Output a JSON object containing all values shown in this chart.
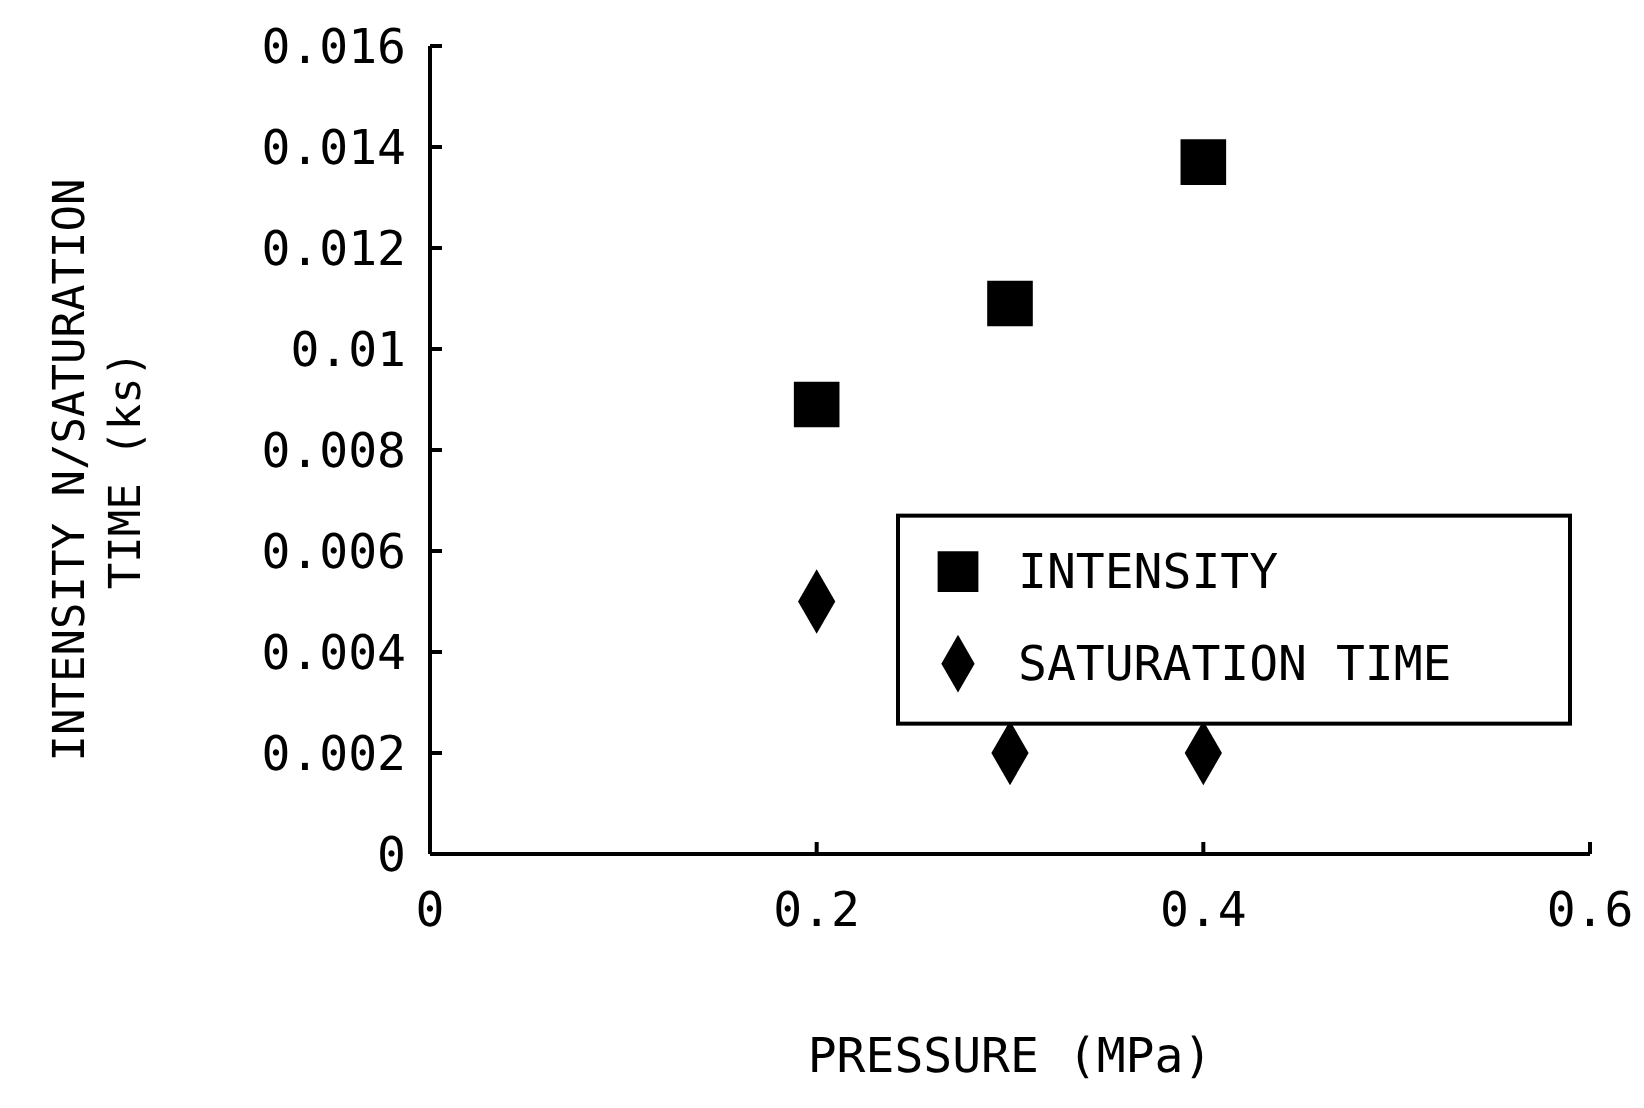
{
  "chart_data": {
    "type": "scatter",
    "xlabel": "PRESSURE (MPa)",
    "ylabel": "INTENSITY N/SATURATION TIME (ks)",
    "xlim": [
      0,
      0.6
    ],
    "xticks": [
      0,
      0.2,
      0.4,
      0.6
    ],
    "ylim": [
      0,
      0.016
    ],
    "yticks": [
      0,
      0.002,
      0.004,
      0.006,
      0.008,
      0.01,
      0.012,
      0.014,
      0.016
    ],
    "grid": false,
    "legend": "right",
    "series": [
      {
        "name": "INTENSITY",
        "color": "#000000",
        "marker": "square",
        "x": [
          0.2,
          0.3,
          0.4
        ],
        "values": [
          0.0089,
          0.0109,
          0.0137
        ]
      },
      {
        "name": "SATURATION TIME",
        "color": "#000000",
        "marker": "diamond",
        "x": [
          0.2,
          0.3,
          0.4
        ],
        "values": [
          0.005,
          0.002,
          0.002
        ]
      }
    ]
  }
}
